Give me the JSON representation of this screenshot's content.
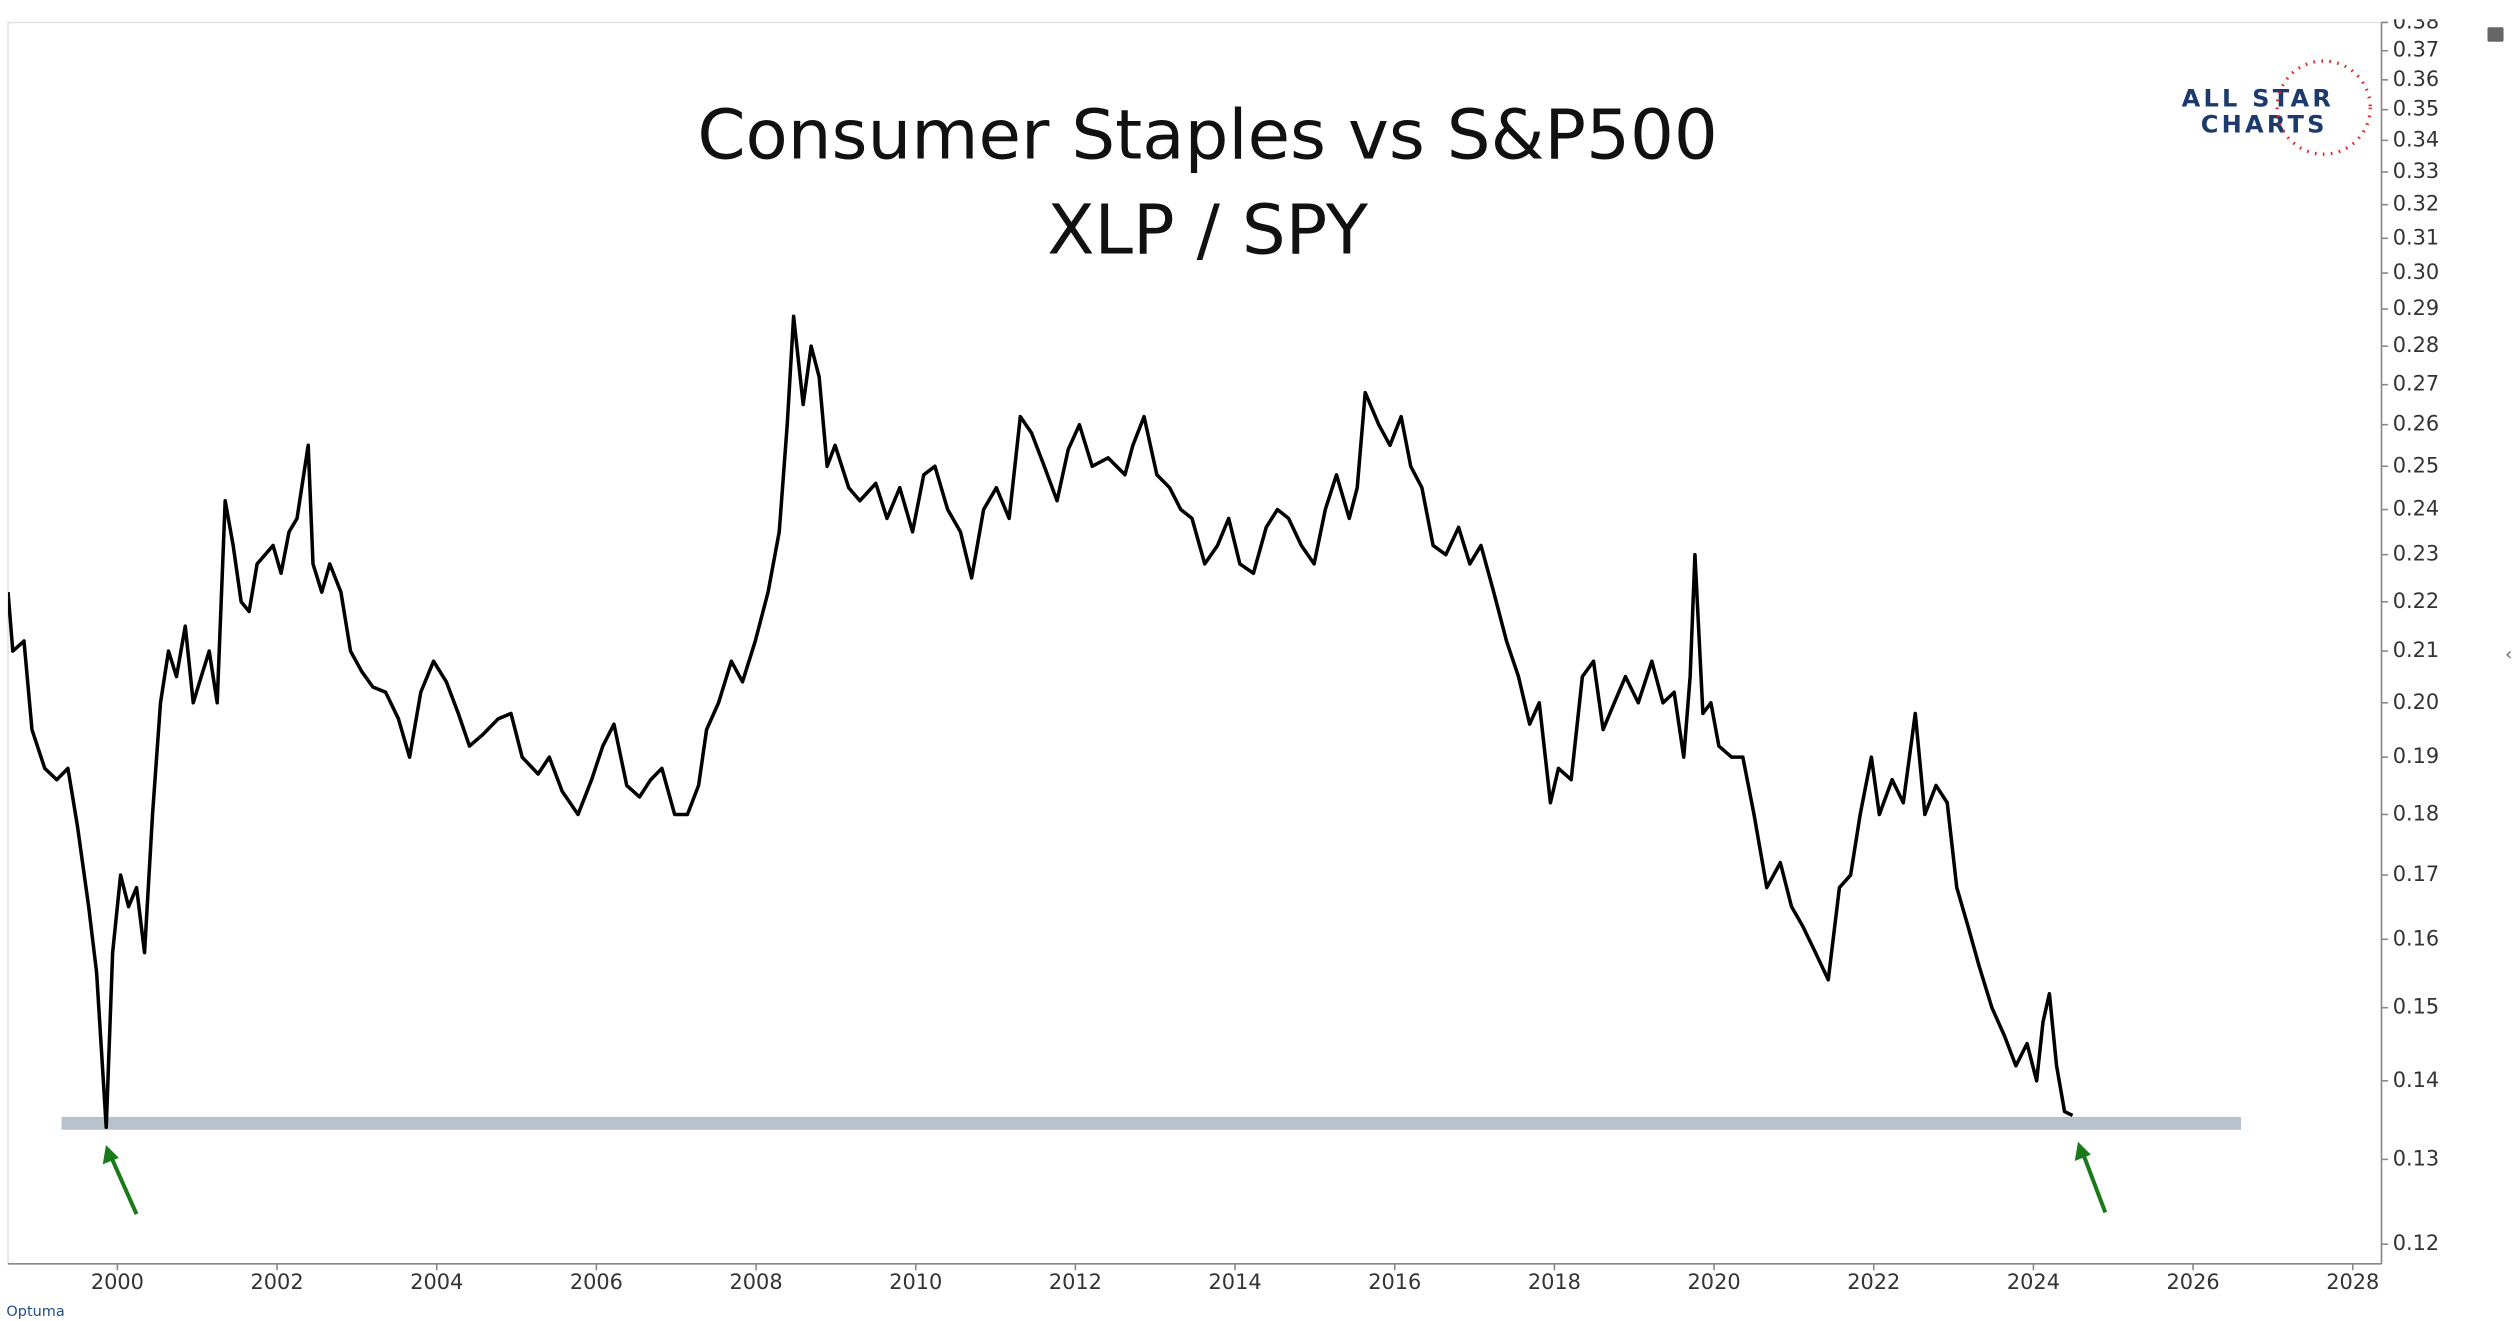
{
  "chart_data": {
    "type": "line",
    "title": "Consumer Staples vs S&P500",
    "subtitle": "XLP / SPY",
    "logo": [
      "ALL STAR",
      "CHARTS"
    ],
    "footer": "Optuma",
    "color": "#000000",
    "yscale": "log",
    "xlim": [
      1998.63,
      2028.36
    ],
    "xticks": [
      2000,
      2002,
      2004,
      2006,
      2008,
      2010,
      2012,
      2014,
      2016,
      2018,
      2020,
      2022,
      2024,
      2026,
      2028
    ],
    "ylim": [
      0.1178,
      0.38
    ],
    "yticks": [
      0.12,
      0.13,
      0.14,
      0.15,
      0.16,
      0.17,
      0.18,
      0.19,
      {
        "value": 0.2,
        "label": "0.20"
      },
      0.21,
      0.22,
      0.23,
      0.24,
      0.25,
      0.26,
      0.27,
      0.28,
      0.29,
      {
        "value": 0.3,
        "label": "0.30"
      },
      0.31,
      0.32,
      0.33,
      0.34,
      0.35,
      0.36,
      0.37,
      0.38
    ],
    "hline": {
      "value": 0.1345,
      "x": [
        1999.3,
        2026.6
      ],
      "color": "#b8c2cc"
    },
    "x": [
      1998.63,
      1998.69,
      1998.83,
      1998.93,
      1999.09,
      1999.24,
      1999.38,
      1999.5,
      1999.64,
      1999.74,
      1999.86,
      1999.94,
      2000.04,
      2000.14,
      2000.24,
      2000.34,
      2000.44,
      2000.54,
      2000.64,
      2000.74,
      2000.85,
      2000.95,
      2001.05,
      2001.15,
      2001.25,
      2001.35,
      2001.45,
      2001.55,
      2001.65,
      2001.75,
      2001.95,
      2002.05,
      2002.15,
      2002.25,
      2002.39,
      2002.45,
      2002.56,
      2002.66,
      2002.8,
      2002.92,
      2003.06,
      2003.2,
      2003.36,
      2003.52,
      2003.66,
      2003.8,
      2003.96,
      2004.12,
      2004.27,
      2004.41,
      2004.57,
      2004.77,
      2004.93,
      2005.07,
      2005.27,
      2005.41,
      2005.57,
      2005.77,
      2005.94,
      2006.08,
      2006.22,
      2006.38,
      2006.54,
      2006.68,
      2006.82,
      2006.98,
      2007.14,
      2007.28,
      2007.38,
      2007.53,
      2007.69,
      2007.83,
      2007.99,
      2008.15,
      2008.29,
      2008.39,
      2008.47,
      2008.59,
      2008.69,
      2008.79,
      2008.89,
      2008.99,
      2009.16,
      2009.3,
      2009.5,
      2009.64,
      2009.8,
      2009.96,
      2010.1,
      2010.24,
      2010.4,
      2010.56,
      2010.7,
      2010.85,
      2011.01,
      2011.17,
      2011.31,
      2011.45,
      2011.61,
      2011.77,
      2011.91,
      2012.05,
      2012.21,
      2012.41,
      2012.62,
      2012.72,
      2012.86,
      2013.02,
      2013.18,
      2013.32,
      2013.46,
      2013.62,
      2013.78,
      2013.92,
      2014.06,
      2014.23,
      2014.39,
      2014.53,
      2014.67,
      2014.83,
      2014.99,
      2015.13,
      2015.27,
      2015.43,
      2015.53,
      2015.63,
      2015.8,
      2015.94,
      2016.08,
      2016.2,
      2016.34,
      2016.48,
      2016.64,
      2016.8,
      2016.94,
      2017.08,
      2017.24,
      2017.4,
      2017.55,
      2017.69,
      2017.81,
      2017.95,
      2018.05,
      2018.21,
      2018.35,
      2018.49,
      2018.61,
      2018.75,
      2018.89,
      2019.05,
      2019.22,
      2019.36,
      2019.5,
      2019.62,
      2019.7,
      2019.76,
      2019.86,
      2019.96,
      2020.06,
      2020.22,
      2020.36,
      2020.5,
      2020.66,
      2020.83,
      2020.97,
      2021.11,
      2021.27,
      2021.43,
      2021.57,
      2021.71,
      2021.83,
      2021.97,
      2022.07,
      2022.23,
      2022.37,
      2022.52,
      2022.64,
      2022.78,
      2022.92,
      2023.04,
      2023.18,
      2023.32,
      2023.48,
      2023.64,
      2023.78,
      2023.92,
      2024.04,
      2024.12,
      2024.2,
      2024.29,
      2024.39,
      2024.49
    ],
    "values": [
      0.222,
      0.21,
      0.212,
      0.195,
      0.188,
      0.186,
      0.188,
      0.178,
      0.165,
      0.155,
      0.134,
      0.158,
      0.17,
      0.165,
      0.168,
      0.158,
      0.18,
      0.2,
      0.21,
      0.205,
      0.215,
      0.2,
      0.205,
      0.21,
      0.2,
      0.242,
      0.232,
      0.22,
      0.218,
      0.228,
      0.232,
      0.226,
      0.235,
      0.238,
      0.255,
      0.228,
      0.222,
      0.228,
      0.222,
      0.21,
      0.206,
      0.203,
      0.202,
      0.197,
      0.19,
      0.202,
      0.208,
      0.204,
      0.198,
      0.192,
      0.194,
      0.197,
      0.198,
      0.19,
      0.187,
      0.19,
      0.184,
      0.18,
      0.186,
      0.192,
      0.196,
      0.185,
      0.183,
      0.186,
      0.188,
      0.18,
      0.18,
      0.185,
      0.195,
      0.2,
      0.208,
      0.204,
      0.212,
      0.222,
      0.235,
      0.26,
      0.288,
      0.265,
      0.28,
      0.272,
      0.25,
      0.255,
      0.245,
      0.242,
      0.246,
      0.238,
      0.245,
      0.235,
      0.248,
      0.25,
      0.24,
      0.235,
      0.225,
      0.24,
      0.245,
      0.238,
      0.262,
      0.258,
      0.25,
      0.242,
      0.254,
      0.26,
      0.25,
      0.252,
      0.248,
      0.255,
      0.262,
      0.248,
      0.245,
      0.24,
      0.238,
      0.228,
      0.232,
      0.238,
      0.228,
      0.226,
      0.236,
      0.24,
      0.238,
      0.232,
      0.228,
      0.24,
      0.248,
      0.238,
      0.245,
      0.268,
      0.26,
      0.255,
      0.262,
      0.25,
      0.245,
      0.232,
      0.23,
      0.236,
      0.228,
      0.232,
      0.222,
      0.212,
      0.205,
      0.196,
      0.2,
      0.182,
      0.188,
      0.186,
      0.205,
      0.208,
      0.195,
      0.2,
      0.205,
      0.2,
      0.208,
      0.2,
      0.202,
      0.19,
      0.205,
      0.23,
      0.198,
      0.2,
      0.192,
      0.19,
      0.19,
      0.18,
      0.168,
      0.172,
      0.165,
      0.162,
      0.158,
      0.154,
      0.168,
      0.17,
      0.18,
      0.19,
      0.18,
      0.186,
      0.182,
      0.198,
      0.18,
      0.185,
      0.182,
      0.168,
      0.162,
      0.156,
      0.15,
      0.146,
      0.142,
      0.145,
      0.14,
      0.148,
      0.152,
      0.142,
      0.136,
      0.1355
    ]
  }
}
